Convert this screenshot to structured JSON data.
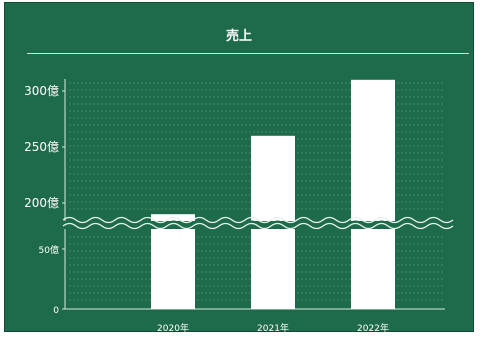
{
  "chart_data": {
    "type": "bar",
    "title": "売上",
    "categories": [
      "2020年",
      "2021年",
      "2022年"
    ],
    "values": [
      190,
      260,
      310
    ],
    "y_ticks": [
      {
        "value": 0,
        "label": "0"
      },
      {
        "value": 50,
        "label": "50億"
      },
      {
        "value": 200,
        "label": "200億"
      },
      {
        "value": 250,
        "label": "250億"
      },
      {
        "value": 300,
        "label": "300億"
      }
    ],
    "axis_break": {
      "from": 50,
      "to": 200
    },
    "ylim": [
      0,
      310
    ],
    "grid": true,
    "colors": {
      "background": "#1e6b4c",
      "bar": "#ffffff",
      "grid": "#3d8a68",
      "text": "#ffffff"
    }
  }
}
